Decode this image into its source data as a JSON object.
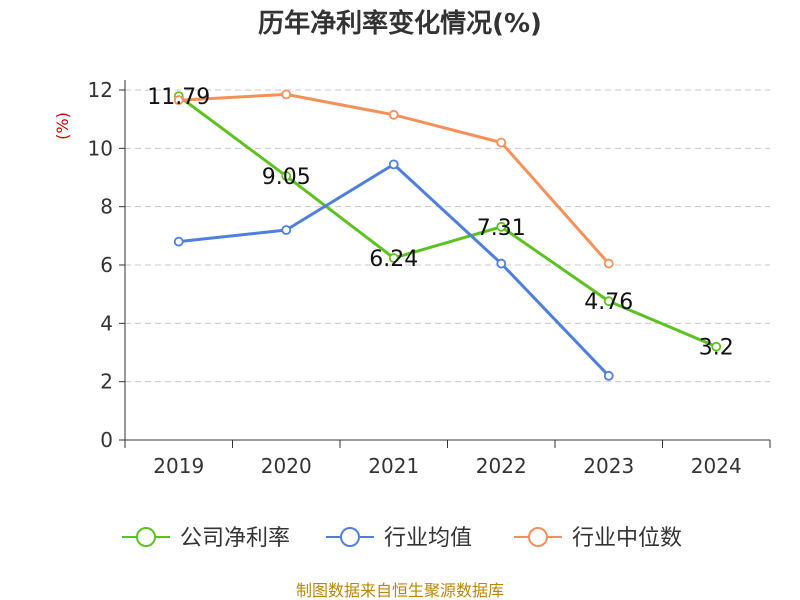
{
  "chart_data": {
    "type": "line",
    "title": "历年净利率变化情况(%)",
    "ylabel": "(%)",
    "xlabel": "",
    "categories": [
      "2019",
      "2020",
      "2021",
      "2022",
      "2023",
      "2024"
    ],
    "ylim": [
      0,
      12
    ],
    "yticks": [
      0,
      2,
      4,
      6,
      8,
      10,
      12
    ],
    "grid": true,
    "legend_position": "bottom",
    "series": [
      {
        "name": "公司净利率",
        "color": "#5cc21f",
        "values": [
          11.79,
          9.05,
          6.24,
          7.31,
          4.76,
          3.2
        ],
        "labels": [
          "11.79",
          "9.05",
          "6.24",
          "7.31",
          "4.76",
          "3.2"
        ]
      },
      {
        "name": "行业均值",
        "color": "#4e80db",
        "values": [
          6.8,
          7.2,
          9.45,
          6.05,
          2.2,
          null
        ]
      },
      {
        "name": "行业中位数",
        "color": "#f59059",
        "values": [
          11.65,
          11.85,
          11.15,
          10.2,
          6.05,
          null
        ]
      }
    ]
  },
  "source": "制图数据来自恒生聚源数据库"
}
